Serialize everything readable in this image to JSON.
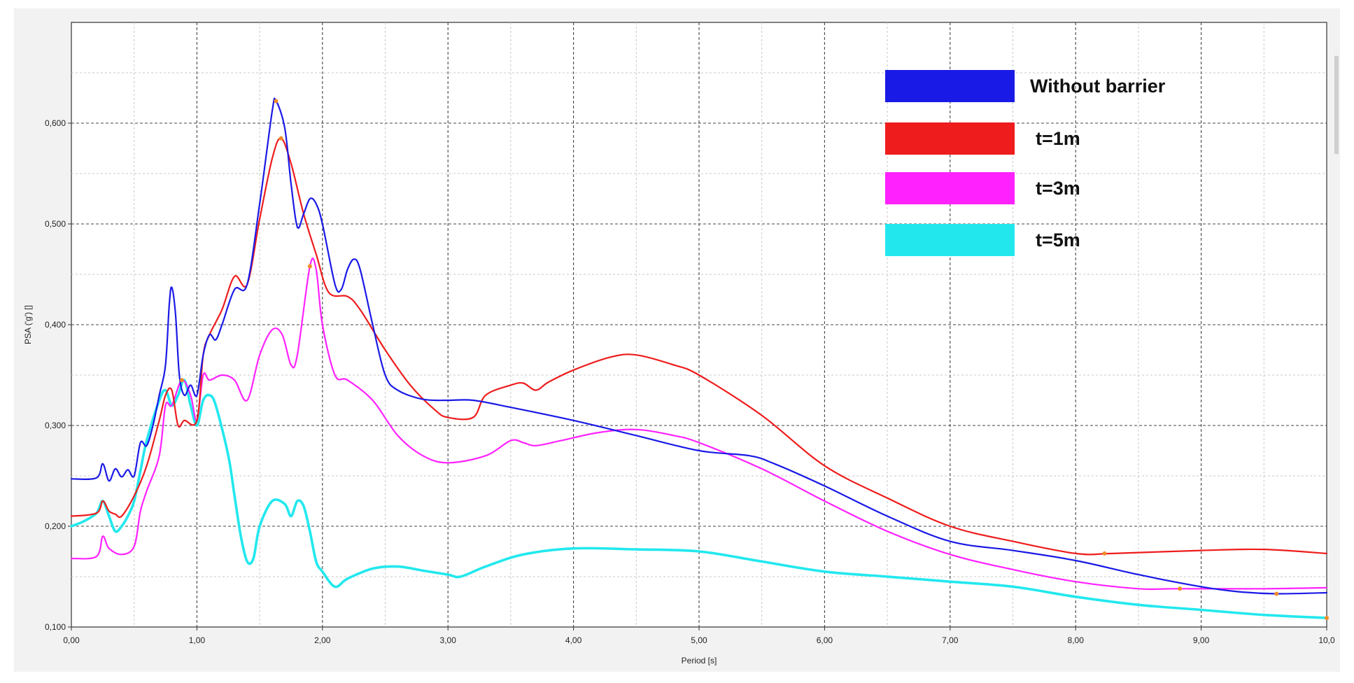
{
  "chart_data": {
    "type": "line",
    "title": "",
    "xlabel": "Period [s]",
    "ylabel": "PSA ('g') []",
    "xlim": [
      0,
      10
    ],
    "ylim": [
      0.1,
      0.7
    ],
    "grid": true,
    "legend_position": "top-right",
    "x_ticks": [
      "0,00",
      "1,00",
      "2,00",
      "3,00",
      "4,00",
      "5,00",
      "6,00",
      "7,00",
      "8,00",
      "9,00",
      "10,0"
    ],
    "y_ticks": [
      "0,100",
      "0,200",
      "0,300",
      "0,400",
      "0,500",
      "0,600"
    ],
    "series": [
      {
        "name": "Without barrier",
        "color": "#1a1ae6",
        "points": [
          [
            0,
            0.247
          ],
          [
            0.2,
            0.248
          ],
          [
            0.25,
            0.262
          ],
          [
            0.3,
            0.245
          ],
          [
            0.35,
            0.257
          ],
          [
            0.4,
            0.249
          ],
          [
            0.45,
            0.256
          ],
          [
            0.5,
            0.25
          ],
          [
            0.55,
            0.283
          ],
          [
            0.6,
            0.28
          ],
          [
            0.65,
            0.3
          ],
          [
            0.7,
            0.33
          ],
          [
            0.75,
            0.36
          ],
          [
            0.78,
            0.42
          ],
          [
            0.8,
            0.437
          ],
          [
            0.83,
            0.41
          ],
          [
            0.86,
            0.35
          ],
          [
            0.9,
            0.33
          ],
          [
            0.95,
            0.34
          ],
          [
            1.0,
            0.33
          ],
          [
            1.05,
            0.37
          ],
          [
            1.1,
            0.39
          ],
          [
            1.15,
            0.385
          ],
          [
            1.2,
            0.4
          ],
          [
            1.3,
            0.435
          ],
          [
            1.4,
            0.44
          ],
          [
            1.5,
            0.52
          ],
          [
            1.6,
            0.612
          ],
          [
            1.63,
            0.622
          ],
          [
            1.7,
            0.595
          ],
          [
            1.75,
            0.54
          ],
          [
            1.8,
            0.497
          ],
          [
            1.85,
            0.51
          ],
          [
            1.9,
            0.525
          ],
          [
            1.95,
            0.52
          ],
          [
            2.0,
            0.5
          ],
          [
            2.1,
            0.44
          ],
          [
            2.15,
            0.435
          ],
          [
            2.2,
            0.455
          ],
          [
            2.25,
            0.465
          ],
          [
            2.3,
            0.455
          ],
          [
            2.4,
            0.4
          ],
          [
            2.5,
            0.35
          ],
          [
            2.6,
            0.335
          ],
          [
            2.8,
            0.326
          ],
          [
            3.0,
            0.325
          ],
          [
            3.2,
            0.325
          ],
          [
            3.5,
            0.318
          ],
          [
            4.0,
            0.305
          ],
          [
            4.5,
            0.29
          ],
          [
            5.0,
            0.275
          ],
          [
            5.4,
            0.27
          ],
          [
            5.6,
            0.262
          ],
          [
            6.0,
            0.24
          ],
          [
            6.5,
            0.21
          ],
          [
            7.0,
            0.185
          ],
          [
            7.5,
            0.176
          ],
          [
            8.0,
            0.166
          ],
          [
            8.5,
            0.152
          ],
          [
            9.0,
            0.14
          ],
          [
            9.3,
            0.135
          ],
          [
            9.6,
            0.133
          ],
          [
            10.0,
            0.134
          ]
        ]
      },
      {
        "name": "t=1m",
        "color": "#ee1c1c",
        "points": [
          [
            0,
            0.21
          ],
          [
            0.2,
            0.213
          ],
          [
            0.25,
            0.225
          ],
          [
            0.3,
            0.215
          ],
          [
            0.35,
            0.212
          ],
          [
            0.4,
            0.21
          ],
          [
            0.5,
            0.23
          ],
          [
            0.6,
            0.26
          ],
          [
            0.7,
            0.305
          ],
          [
            0.75,
            0.33
          ],
          [
            0.8,
            0.335
          ],
          [
            0.85,
            0.3
          ],
          [
            0.9,
            0.305
          ],
          [
            1.0,
            0.305
          ],
          [
            1.05,
            0.37
          ],
          [
            1.1,
            0.39
          ],
          [
            1.2,
            0.415
          ],
          [
            1.3,
            0.448
          ],
          [
            1.4,
            0.44
          ],
          [
            1.5,
            0.505
          ],
          [
            1.6,
            0.565
          ],
          [
            1.67,
            0.585
          ],
          [
            1.75,
            0.56
          ],
          [
            1.85,
            0.51
          ],
          [
            1.95,
            0.47
          ],
          [
            2.05,
            0.432
          ],
          [
            2.2,
            0.428
          ],
          [
            2.3,
            0.415
          ],
          [
            2.5,
            0.375
          ],
          [
            2.7,
            0.34
          ],
          [
            2.9,
            0.315
          ],
          [
            3.0,
            0.308
          ],
          [
            3.2,
            0.308
          ],
          [
            3.3,
            0.33
          ],
          [
            3.5,
            0.34
          ],
          [
            3.6,
            0.342
          ],
          [
            3.7,
            0.335
          ],
          [
            3.8,
            0.343
          ],
          [
            4.0,
            0.355
          ],
          [
            4.3,
            0.368
          ],
          [
            4.5,
            0.37
          ],
          [
            4.8,
            0.36
          ],
          [
            5.0,
            0.35
          ],
          [
            5.5,
            0.31
          ],
          [
            6.0,
            0.26
          ],
          [
            6.5,
            0.228
          ],
          [
            7.0,
            0.2
          ],
          [
            7.5,
            0.185
          ],
          [
            8.0,
            0.173
          ],
          [
            8.3,
            0.173
          ],
          [
            9.0,
            0.176
          ],
          [
            9.5,
            0.177
          ],
          [
            10.0,
            0.173
          ]
        ]
      },
      {
        "name": "t=3m",
        "color": "#ff22ff",
        "points": [
          [
            0,
            0.168
          ],
          [
            0.2,
            0.17
          ],
          [
            0.25,
            0.19
          ],
          [
            0.3,
            0.178
          ],
          [
            0.4,
            0.172
          ],
          [
            0.5,
            0.18
          ],
          [
            0.55,
            0.215
          ],
          [
            0.6,
            0.235
          ],
          [
            0.7,
            0.27
          ],
          [
            0.75,
            0.32
          ],
          [
            0.8,
            0.32
          ],
          [
            0.88,
            0.345
          ],
          [
            0.95,
            0.33
          ],
          [
            1.0,
            0.305
          ],
          [
            1.05,
            0.35
          ],
          [
            1.1,
            0.345
          ],
          [
            1.2,
            0.35
          ],
          [
            1.3,
            0.345
          ],
          [
            1.4,
            0.325
          ],
          [
            1.5,
            0.37
          ],
          [
            1.6,
            0.395
          ],
          [
            1.68,
            0.39
          ],
          [
            1.75,
            0.36
          ],
          [
            1.8,
            0.37
          ],
          [
            1.9,
            0.458
          ],
          [
            1.95,
            0.455
          ],
          [
            2.0,
            0.4
          ],
          [
            2.1,
            0.35
          ],
          [
            2.2,
            0.345
          ],
          [
            2.4,
            0.325
          ],
          [
            2.6,
            0.29
          ],
          [
            2.8,
            0.27
          ],
          [
            3.0,
            0.263
          ],
          [
            3.3,
            0.27
          ],
          [
            3.5,
            0.285
          ],
          [
            3.6,
            0.283
          ],
          [
            3.7,
            0.28
          ],
          [
            3.9,
            0.285
          ],
          [
            4.2,
            0.293
          ],
          [
            4.5,
            0.296
          ],
          [
            4.8,
            0.29
          ],
          [
            5.0,
            0.283
          ],
          [
            5.5,
            0.257
          ],
          [
            6.0,
            0.225
          ],
          [
            6.5,
            0.195
          ],
          [
            7.0,
            0.172
          ],
          [
            7.5,
            0.157
          ],
          [
            8.0,
            0.145
          ],
          [
            8.5,
            0.138
          ],
          [
            8.8,
            0.138
          ],
          [
            9.5,
            0.138
          ],
          [
            10.0,
            0.139
          ]
        ]
      },
      {
        "name": "t=5m",
        "color": "#22e8ee",
        "points": [
          [
            0,
            0.2
          ],
          [
            0.1,
            0.205
          ],
          [
            0.2,
            0.213
          ],
          [
            0.25,
            0.225
          ],
          [
            0.3,
            0.21
          ],
          [
            0.35,
            0.195
          ],
          [
            0.4,
            0.2
          ],
          [
            0.45,
            0.21
          ],
          [
            0.5,
            0.225
          ],
          [
            0.55,
            0.255
          ],
          [
            0.6,
            0.285
          ],
          [
            0.7,
            0.325
          ],
          [
            0.75,
            0.335
          ],
          [
            0.8,
            0.32
          ],
          [
            0.85,
            0.33
          ],
          [
            0.9,
            0.345
          ],
          [
            0.95,
            0.32
          ],
          [
            1.0,
            0.3
          ],
          [
            1.05,
            0.325
          ],
          [
            1.1,
            0.33
          ],
          [
            1.15,
            0.32
          ],
          [
            1.25,
            0.27
          ],
          [
            1.3,
            0.23
          ],
          [
            1.35,
            0.19
          ],
          [
            1.4,
            0.165
          ],
          [
            1.45,
            0.168
          ],
          [
            1.5,
            0.2
          ],
          [
            1.6,
            0.225
          ],
          [
            1.7,
            0.222
          ],
          [
            1.75,
            0.21
          ],
          [
            1.8,
            0.225
          ],
          [
            1.85,
            0.22
          ],
          [
            1.9,
            0.195
          ],
          [
            1.95,
            0.165
          ],
          [
            2.0,
            0.155
          ],
          [
            2.1,
            0.14
          ],
          [
            2.2,
            0.148
          ],
          [
            2.4,
            0.158
          ],
          [
            2.6,
            0.16
          ],
          [
            2.8,
            0.156
          ],
          [
            3.0,
            0.152
          ],
          [
            3.1,
            0.15
          ],
          [
            3.3,
            0.16
          ],
          [
            3.6,
            0.172
          ],
          [
            4.0,
            0.178
          ],
          [
            4.5,
            0.177
          ],
          [
            5.0,
            0.175
          ],
          [
            5.5,
            0.165
          ],
          [
            6.0,
            0.155
          ],
          [
            6.5,
            0.15
          ],
          [
            7.0,
            0.145
          ],
          [
            7.5,
            0.14
          ],
          [
            8.0,
            0.13
          ],
          [
            8.5,
            0.122
          ],
          [
            9.0,
            0.117
          ],
          [
            9.5,
            0.112
          ],
          [
            10.0,
            0.109
          ]
        ]
      }
    ],
    "markers": [
      {
        "x": 1.63,
        "y": 0.622
      },
      {
        "x": 1.67,
        "y": 0.585
      },
      {
        "x": 1.9,
        "y": 0.458
      },
      {
        "x": 0.88,
        "y": 0.345
      },
      {
        "x": 8.23,
        "y": 0.173
      },
      {
        "x": 8.83,
        "y": 0.138
      },
      {
        "x": 9.6,
        "y": 0.133
      },
      {
        "x": 10.0,
        "y": 0.109
      }
    ],
    "legend": [
      {
        "label": "Without barrier",
        "color": "#1a1ae6"
      },
      {
        "label": "t=1m",
        "color": "#ee1c1c"
      },
      {
        "label": "t=3m",
        "color": "#ff22ff"
      },
      {
        "label": "t=5m",
        "color": "#22e8ee"
      }
    ]
  }
}
